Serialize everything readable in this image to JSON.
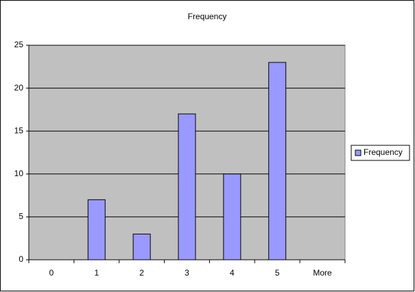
{
  "chart_data": {
    "type": "bar",
    "title": "Frequency",
    "categories": [
      "0",
      "1",
      "2",
      "3",
      "4",
      "5",
      "More"
    ],
    "series": [
      {
        "name": "Frequency",
        "color": "#9999ff",
        "values": [
          0,
          7,
          3,
          17,
          10,
          23,
          0
        ]
      }
    ],
    "ylim": [
      0,
      25
    ],
    "yticks": [
      0,
      5,
      10,
      15,
      20,
      25
    ],
    "grid": true,
    "legend": "right"
  }
}
